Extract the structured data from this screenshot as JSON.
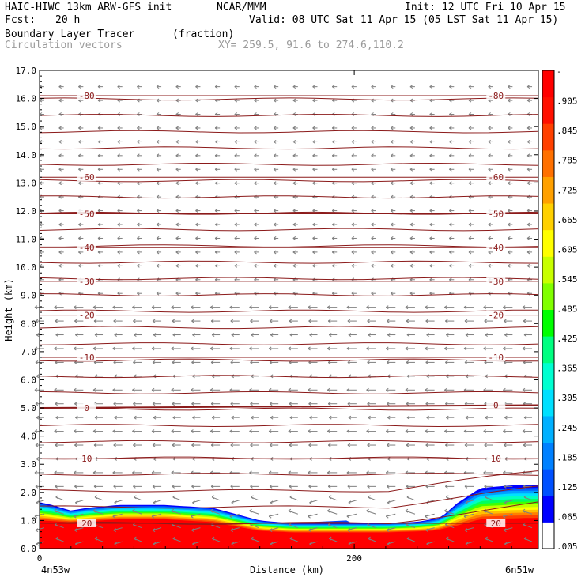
{
  "header": {
    "model": "HAIC-HIWC 13km ARW-GFS init",
    "org": "NCAR/MMM",
    "init": "Init: 12 UTC Fri 10 Apr 15",
    "fcst_label": "Fcst:",
    "fcst_value": "20 h",
    "valid": "Valid: 08 UTC Sat 11 Apr 15 (05 LST Sat 11 Apr 15)",
    "field1_name": "Boundary Layer Tracer",
    "field1_units": "(fraction)",
    "field2_name": "Circulation vectors",
    "xsec": "XY= 259.5, 91.6 to 274.6,110.2"
  },
  "colors": {
    "isotherm": "#8b1a1a",
    "vector": "#7f7f7f",
    "scale": [
      "#ffffff",
      "#0000ff",
      "#0050ff",
      "#0080ff",
      "#00b0ff",
      "#00e0ff",
      "#00ffd0",
      "#00ff80",
      "#00ff00",
      "#80ff00",
      "#c8ff00",
      "#ffff00",
      "#ffd000",
      "#ffa000",
      "#ff7000",
      "#ff4000",
      "#ff1000",
      "#ff0000"
    ]
  },
  "chart_data": {
    "type": "heatmap",
    "title": "Boundary Layer Tracer",
    "xlabel": "Distance (km)",
    "ylabel": "Height (km)",
    "xlim": [
      0,
      317
    ],
    "ylim": [
      0,
      17
    ],
    "x_ticks": [
      0,
      200
    ],
    "y_ticks": [
      "0.0",
      "1.0",
      "2.0",
      "3.0",
      "4.0",
      "5.0",
      "6.0",
      "7.0",
      "8.0",
      "9.0",
      "10.0",
      "11.0",
      "12.0",
      "13.0",
      "14.0",
      "15.0",
      "16.0",
      "17.0"
    ],
    "x_endpoints": {
      "left": "4n53w",
      "right": "6n51w"
    },
    "colorbar_labels": [
      "-",
      ".905",
      ".845",
      ".785",
      ".725",
      ".665",
      ".605",
      ".545",
      ".485",
      ".425",
      ".365",
      ".305",
      ".245",
      ".185",
      ".125",
      ".065",
      ".005"
    ],
    "tracer_top_km": {
      "x": [
        0,
        8,
        20,
        30,
        50,
        80,
        110,
        140,
        160,
        190,
        220,
        240,
        255,
        265,
        280,
        300,
        317
      ],
      "h": [
        1.65,
        1.55,
        1.35,
        1.45,
        1.55,
        1.55,
        1.45,
        1.0,
        0.9,
        0.9,
        0.9,
        0.95,
        1.1,
        1.6,
        2.15,
        2.25,
        2.25
      ]
    },
    "tracer_red_top_km": {
      "x": [
        0,
        20,
        50,
        80,
        110,
        140,
        160,
        190,
        220,
        250,
        265,
        280,
        317
      ],
      "h": [
        0.95,
        0.9,
        1.0,
        1.0,
        0.9,
        0.6,
        0.55,
        0.55,
        0.55,
        0.6,
        0.75,
        0.95,
        1.0
      ]
    },
    "isotherm_labels": [
      {
        "value": "-80",
        "left_h": 16.1,
        "right_h": 16.1
      },
      {
        "value": "-60",
        "left_h": 13.2,
        "right_h": 13.2
      },
      {
        "value": "-50",
        "left_h": 11.9,
        "right_h": 11.9
      },
      {
        "value": "-40",
        "left_h": 10.7,
        "right_h": 10.7
      },
      {
        "value": "-30",
        "left_h": 9.5,
        "right_h": 9.5
      },
      {
        "value": "-20",
        "left_h": 8.3,
        "right_h": 8.3
      },
      {
        "value": "-10",
        "left_h": 6.8,
        "right_h": 6.8
      },
      {
        "value": "0",
        "left_h": 5.0,
        "right_h": 5.1
      },
      {
        "value": "10",
        "left_h": 3.2,
        "right_h": 3.2
      },
      {
        "value": "20",
        "left_h": 0.9,
        "right_h": 0.9
      }
    ]
  }
}
